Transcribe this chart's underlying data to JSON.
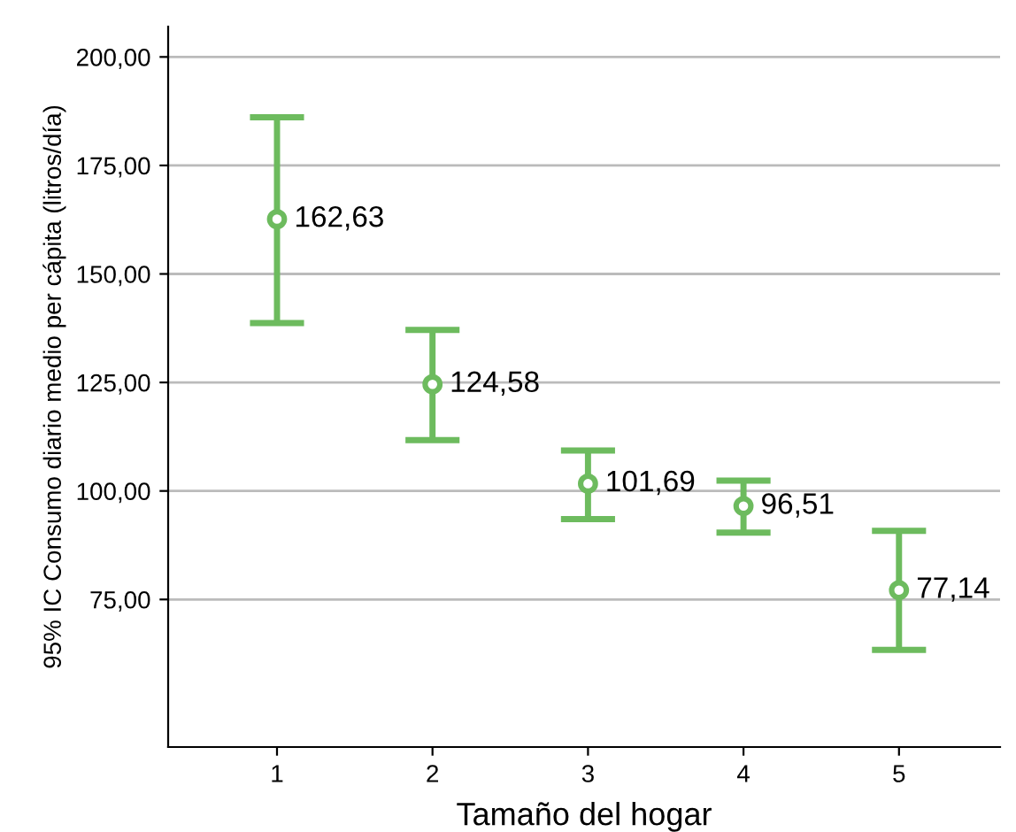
{
  "chart_data": {
    "type": "scatter",
    "xlabel": "Tamaño del hogar",
    "ylabel": "95% IC Consumo diario medio per cápita (litros/día)",
    "x": [
      1,
      2,
      3,
      4,
      5
    ],
    "series": [
      {
        "color": "#6dbb5e",
        "values": [
          162.63,
          124.58,
          101.69,
          96.51,
          77.14
        ],
        "errors": [
          [
            138.7,
            186.1
          ],
          [
            111.7,
            137.1
          ],
          [
            93.5,
            109.3
          ],
          [
            90.4,
            102.4
          ],
          [
            63.4,
            90.8
          ]
        ],
        "value_labels": [
          "162,63",
          "124,58",
          "101,69",
          "96,51",
          "77,14"
        ]
      }
    ],
    "xlim": [
      0.3,
      5.65
    ],
    "xticks": [
      1,
      2,
      3,
      4,
      5
    ],
    "ylim": [
      41,
      207
    ],
    "yticks": [
      {
        "value": 75,
        "label": "75,00"
      },
      {
        "value": 100,
        "label": "100,00"
      },
      {
        "value": 125,
        "label": "125,00"
      },
      {
        "value": 150,
        "label": "150,00"
      },
      {
        "value": 175,
        "label": "175,00"
      },
      {
        "value": 200,
        "label": "200,00"
      }
    ],
    "grid": "y",
    "marker": "circle",
    "legend": false
  }
}
